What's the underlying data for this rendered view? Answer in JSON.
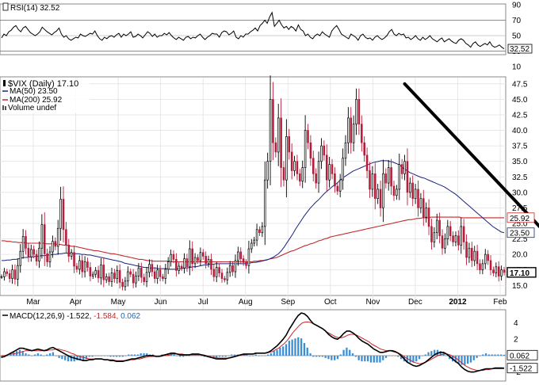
{
  "chart_data": [
    {
      "type": "line",
      "panel": "rsi",
      "title": "RSI(14) 32.52",
      "series": [
        {
          "name": "RSI(14)",
          "color": "#000000"
        }
      ],
      "y_ticks": [
        "90",
        "70",
        "50",
        "30",
        "10"
      ],
      "reference_lines": [
        70,
        50,
        30
      ],
      "current_value_label": "32.52",
      "ylim": [
        10,
        90
      ],
      "values": [
        47,
        52,
        50,
        55,
        57,
        61,
        63,
        58,
        55,
        60,
        62,
        58,
        54,
        52,
        50,
        52,
        55,
        61,
        58,
        55,
        53,
        51,
        54,
        56,
        60,
        52,
        48,
        50,
        46,
        44,
        46,
        48,
        47,
        52,
        50,
        49,
        51,
        53,
        52,
        56,
        50,
        46,
        44,
        48,
        46,
        49,
        50,
        48,
        51,
        53,
        48,
        52,
        50,
        52,
        55,
        48,
        49,
        52,
        50,
        47,
        51,
        55,
        53,
        49,
        52,
        48,
        50,
        50,
        53,
        51,
        54,
        50,
        47,
        45,
        48,
        46,
        44,
        48,
        49,
        46,
        48,
        47,
        50,
        52,
        48,
        45,
        48,
        50,
        53,
        52,
        52,
        48,
        54,
        56,
        55,
        51,
        53,
        56,
        48,
        46,
        50,
        48,
        52,
        52,
        55,
        57,
        60,
        56,
        63,
        66,
        70,
        66,
        74,
        80,
        62,
        66,
        70,
        64,
        60,
        62,
        58,
        62,
        60,
        56,
        64,
        58,
        56,
        50,
        52,
        48,
        46,
        50,
        52,
        50,
        55,
        52,
        50,
        48,
        56,
        60,
        63,
        58,
        52,
        50,
        48,
        46,
        52,
        50,
        48,
        44,
        50,
        52,
        48,
        46,
        47,
        44,
        48,
        50,
        47,
        45,
        47,
        50,
        55,
        58,
        52,
        50,
        53,
        51,
        52,
        47,
        48,
        45,
        47,
        50,
        46,
        44,
        48,
        45,
        47,
        50,
        46,
        44,
        42,
        45,
        47,
        42,
        44,
        46,
        43,
        41,
        40,
        44,
        46,
        44,
        40,
        38,
        35,
        40,
        42,
        38,
        36,
        38,
        40,
        38,
        42,
        37,
        35,
        36,
        38,
        35,
        33
      ]
    },
    {
      "type": "candlestick",
      "panel": "price",
      "title": "$VIX (Daily) 17.10",
      "series": [
        {
          "name": "$VIX (Daily) 17.10",
          "color": "#000000"
        },
        {
          "name": "MA(50) 23.50",
          "color": "#1a237e"
        },
        {
          "name": "MA(200) 25.92",
          "color": "#c62828"
        },
        {
          "name": "Volume undef",
          "color": "#555555"
        }
      ],
      "x_tick_labels": [
        "Mar",
        "Apr",
        "May",
        "Jun",
        "Jul",
        "Aug",
        "Sep",
        "Oct",
        "Nov",
        "Dec",
        "2012",
        "Feb"
      ],
      "y_ticks": [
        "47.5",
        "45.0",
        "42.5",
        "40.0",
        "37.5",
        "35.0",
        "32.5",
        "30.0",
        "27.5",
        "25.0",
        "22.5",
        "20.0",
        "17.5",
        "15.0"
      ],
      "ylim": [
        13.5,
        48.5
      ],
      "price_labels": [
        {
          "text": "25.92",
          "value": 25.92,
          "color": "#c62828"
        },
        {
          "text": "23.50",
          "value": 23.5,
          "color": "#1a237e"
        },
        {
          "text": "17.10",
          "value": 17.1,
          "color": "#000000"
        }
      ],
      "trendline": {
        "from_index": 150,
        "from_value": 47.5,
        "to_index": 210,
        "to_value": 20.0,
        "color": "#000000"
      },
      "close": [
        16.4,
        17.2,
        16.9,
        16.1,
        17.5,
        16.0,
        18.2,
        20.5,
        22.9,
        21.0,
        19.6,
        20.8,
        20.0,
        18.9,
        21.0,
        24.8,
        20.1,
        18.8,
        20.4,
        22.1,
        21.3,
        24.2,
        28.9,
        24.0,
        21.5,
        19.7,
        20.3,
        18.1,
        17.6,
        19.0,
        17.2,
        18.8,
        17.9,
        16.5,
        16.8,
        17.4,
        16.2,
        18.3,
        15.9,
        16.4,
        15.6,
        17.0,
        16.1,
        17.4,
        15.5,
        14.8,
        15.7,
        17.2,
        16.8,
        15.4,
        16.5,
        17.8,
        16.3,
        15.6,
        17.1,
        18.4,
        17.2,
        16.1,
        17.5,
        16.4,
        16.1,
        17.6,
        18.8,
        20.0,
        19.2,
        17.4,
        18.1,
        17.8,
        19.3,
        18.0,
        20.9,
        18.5,
        19.5,
        19.0,
        20.3,
        19.7,
        18.5,
        19.2,
        17.6,
        16.4,
        17.9,
        17.0,
        16.1,
        15.9,
        17.1,
        18.2,
        17.2,
        19.0,
        20.4,
        19.3,
        18.7,
        18.2,
        20.9,
        21.8,
        22.3,
        24.0,
        23.5,
        24.5,
        32.0,
        35.0,
        45.0,
        38.0,
        36.5,
        42.0,
        34.0,
        32.0,
        39.0,
        36.5,
        33.5,
        35.0,
        33.0,
        31.8,
        34.0,
        40.0,
        38.0,
        35.5,
        33.0,
        31.5,
        35.0,
        37.5,
        36.0,
        32.0,
        34.5,
        33.0,
        31.0,
        30.2,
        32.0,
        35.5,
        38.0,
        42.0,
        38.0,
        41.0,
        45.0,
        41.0,
        38.0,
        36.0,
        33.5,
        30.5,
        33.0,
        29.0,
        30.5,
        27.5,
        33.0,
        31.5,
        34.0,
        31.0,
        29.5,
        30.5,
        34.5,
        33.0,
        35.0,
        30.0,
        31.5,
        29.0,
        30.5,
        27.5,
        29.0,
        26.0,
        27.5,
        24.5,
        22.0,
        23.5,
        25.5,
        23.0,
        21.0,
        22.5,
        24.5,
        23.0,
        22.0,
        23.0,
        21.5,
        24.5,
        22.0,
        19.5,
        21.0,
        19.0,
        20.5,
        18.5,
        17.5,
        18.5,
        20.0,
        19.0,
        17.5,
        17.0,
        18.0,
        16.5,
        17.5,
        17.1
      ],
      "ma50": [
        19.0,
        19.0,
        19.1,
        19.1,
        19.2,
        19.2,
        19.3,
        19.4,
        19.5,
        19.5,
        19.6,
        19.6,
        19.7,
        19.7,
        19.8,
        19.8,
        19.9,
        19.9,
        20.0,
        20.0,
        20.1,
        20.1,
        20.2,
        20.2,
        20.2,
        20.1,
        20.1,
        20.1,
        20.0,
        20.0,
        19.9,
        19.9,
        19.8,
        19.7,
        19.6,
        19.5,
        19.4,
        19.3,
        19.2,
        19.1,
        19.0,
        18.9,
        18.8,
        18.6,
        18.5,
        18.4,
        18.3,
        18.2,
        18.1,
        18.0,
        17.9,
        17.9,
        17.8,
        17.8,
        17.8,
        17.7,
        17.7,
        17.7,
        17.7,
        17.6,
        17.6,
        17.6,
        17.7,
        17.7,
        17.8,
        17.8,
        17.9,
        18.0,
        18.0,
        18.1,
        18.2,
        18.3,
        18.3,
        18.4,
        18.4,
        18.5,
        18.5,
        18.5,
        18.5,
        18.5,
        18.5,
        18.5,
        18.5,
        18.5,
        18.5,
        18.5,
        18.6,
        18.6,
        18.7,
        18.7,
        18.8,
        18.9,
        19.0,
        19.1,
        19.3,
        19.5,
        19.8,
        20.1,
        20.6,
        21.2,
        21.9,
        22.6,
        23.3,
        24.1,
        24.8,
        25.5,
        26.2,
        26.8,
        27.4,
        27.9,
        28.4,
        28.8,
        29.3,
        29.8,
        30.2,
        30.6,
        31.0,
        31.3,
        31.7,
        32.1,
        32.5,
        32.8,
        33.1,
        33.4,
        33.6,
        33.8,
        34.0,
        34.2,
        34.4,
        34.6,
        34.8,
        34.9,
        35.0,
        35.1,
        35.1,
        35.1,
        35.0,
        34.9,
        34.7,
        34.5,
        34.2,
        33.8,
        33.5,
        33.2,
        33.0,
        32.8,
        32.6,
        32.4,
        32.3,
        32.1,
        31.9,
        31.7,
        31.5,
        31.3,
        31.1,
        30.9,
        30.6,
        30.3,
        30.0,
        29.7,
        29.3,
        28.9,
        28.5,
        28.1,
        27.7,
        27.3,
        26.9,
        26.5,
        26.1,
        25.7,
        25.3,
        24.9,
        24.5,
        24.2,
        23.9,
        23.6,
        23.5
      ],
      "ma200": [
        22.2,
        22.2,
        22.1,
        22.1,
        22.0,
        22.0,
        21.9,
        21.9,
        21.9,
        21.8,
        21.8,
        21.8,
        21.8,
        21.8,
        21.8,
        21.8,
        21.7,
        21.7,
        21.7,
        21.7,
        21.6,
        21.6,
        21.5,
        21.5,
        21.4,
        21.3,
        21.3,
        21.2,
        21.1,
        21.0,
        20.9,
        20.8,
        20.7,
        20.6,
        20.6,
        20.5,
        20.4,
        20.3,
        20.2,
        20.1,
        20.1,
        20.0,
        19.9,
        19.8,
        19.7,
        19.6,
        19.5,
        19.4,
        19.3,
        19.2,
        19.2,
        19.1,
        19.0,
        19.0,
        18.9,
        18.9,
        18.9,
        18.9,
        18.9,
        18.9,
        18.9,
        18.8,
        18.8,
        18.8,
        18.8,
        18.8,
        18.8,
        18.8,
        18.8,
        18.8,
        18.8,
        18.8,
        18.8,
        18.8,
        18.8,
        18.8,
        18.8,
        18.8,
        18.8,
        18.8,
        18.8,
        18.8,
        18.8,
        18.8,
        18.8,
        18.8,
        18.8,
        18.8,
        18.8,
        18.8,
        18.9,
        18.9,
        19.0,
        19.0,
        19.1,
        19.2,
        19.3,
        19.4,
        19.5,
        19.7,
        19.9,
        20.1,
        20.3,
        20.5,
        20.6,
        20.8,
        21.0,
        21.2,
        21.4,
        21.5,
        21.7,
        21.8,
        22.0,
        22.2,
        22.3,
        22.5,
        22.6,
        22.8,
        22.9,
        23.0,
        23.1,
        23.2,
        23.3,
        23.4,
        23.5,
        23.6,
        23.7,
        23.8,
        23.9,
        24.0,
        24.1,
        24.2,
        24.3,
        24.4,
        24.5,
        24.6,
        24.7,
        24.8,
        24.9,
        25.0,
        25.1,
        25.2,
        25.3,
        25.4,
        25.5,
        25.6,
        25.6,
        25.7,
        25.8,
        25.8,
        25.9,
        25.9,
        25.9,
        26.0,
        26.0,
        26.0,
        26.0,
        26.0,
        26.0,
        26.0,
        26.0,
        26.0,
        26.0,
        26.0,
        25.9,
        25.9,
        25.9,
        25.9,
        25.9,
        25.9,
        25.9,
        25.9,
        25.9,
        25.9,
        25.9,
        25.9,
        25.9,
        25.9,
        25.9,
        25.92
      ]
    },
    {
      "type": "line",
      "panel": "macd",
      "title": "MACD(12,26,9) -1.522, -1.584, 0.062",
      "legend_parts": [
        {
          "text": "MACD(12,26,9)",
          "color": "#000000"
        },
        {
          "text": " -1.522,",
          "color": "#000000"
        },
        {
          "text": " -1.584,",
          "color": "#c62828"
        },
        {
          "text": " 0.062",
          "color": "#1565c0"
        }
      ],
      "series": [
        {
          "name": "MACD",
          "color": "#000000"
        },
        {
          "name": "Signal",
          "color": "#c62828"
        },
        {
          "name": "Histogram",
          "color": "#2e86de"
        }
      ],
      "y_ticks": [
        "4",
        "2",
        "0",
        "-2"
      ],
      "ylim": [
        -3,
        5.5
      ],
      "value_labels": [
        {
          "text": "0.062",
          "value": 0.062
        },
        {
          "text": "-1.522",
          "value": -1.522
        }
      ],
      "macd": [
        -0.2,
        -0.1,
        0.1,
        0.3,
        0.5,
        0.7,
        0.9,
        0.9,
        0.8,
        0.7,
        0.6,
        0.7,
        0.8,
        0.7,
        0.6,
        0.7,
        0.9,
        1.0,
        0.8,
        0.6,
        0.4,
        0.2,
        0.0,
        -0.2,
        -0.3,
        -0.4,
        -0.5,
        -0.6,
        -0.6,
        -0.5,
        -0.5,
        -0.4,
        -0.4,
        -0.4,
        -0.5,
        -0.5,
        -0.6,
        -0.6,
        -0.7,
        -0.7,
        -0.7,
        -0.6,
        -0.5,
        -0.4,
        -0.4,
        -0.3,
        -0.2,
        -0.1,
        0.0,
        0.0,
        0.0,
        -0.1,
        -0.1,
        0.0,
        0.1,
        0.2,
        0.3,
        0.3,
        0.2,
        0.1,
        0.1,
        0.1,
        0.1,
        0.2,
        0.2,
        0.2,
        0.1,
        0.0,
        -0.1,
        -0.2,
        -0.3,
        -0.4,
        -0.4,
        -0.4,
        -0.4,
        -0.3,
        -0.2,
        -0.1,
        0.0,
        0.1,
        0.2,
        0.2,
        0.2,
        0.2,
        0.3,
        0.3,
        0.3,
        0.3,
        0.4,
        0.6,
        0.9,
        1.2,
        1.6,
        2.0,
        2.5,
        3.2,
        3.8,
        4.4,
        4.9,
        5.2,
        5.1,
        4.8,
        4.3,
        3.9,
        3.7,
        3.5,
        3.3,
        3.0,
        2.6,
        2.3,
        2.1,
        2.0,
        2.3,
        2.7,
        3.0,
        3.0,
        2.8,
        2.5,
        2.1,
        1.8,
        1.6,
        1.4,
        1.1,
        0.8,
        0.6,
        0.4,
        0.4,
        0.5,
        0.6,
        0.6,
        0.5,
        0.3,
        0.0,
        -0.4,
        -0.8,
        -1.0,
        -1.2,
        -1.3,
        -1.2,
        -1.0,
        -0.8,
        -0.5,
        -0.2,
        0.1,
        0.3,
        0.4,
        0.4,
        0.2,
        -0.1,
        -0.4,
        -0.7,
        -1.0,
        -1.4,
        -1.7,
        -1.9,
        -2.0,
        -2.0,
        -1.9,
        -1.8,
        -1.7,
        -1.6,
        -1.6,
        -1.6,
        -1.5,
        -1.5,
        -1.5,
        -1.522
      ],
      "signal": [
        0.0,
        0.0,
        0.1,
        0.2,
        0.2,
        0.3,
        0.4,
        0.5,
        0.6,
        0.6,
        0.6,
        0.6,
        0.6,
        0.6,
        0.6,
        0.6,
        0.7,
        0.7,
        0.8,
        0.8,
        0.7,
        0.6,
        0.5,
        0.3,
        0.2,
        0.0,
        -0.1,
        -0.2,
        -0.3,
        -0.4,
        -0.4,
        -0.4,
        -0.4,
        -0.4,
        -0.5,
        -0.5,
        -0.5,
        -0.5,
        -0.6,
        -0.6,
        -0.6,
        -0.6,
        -0.6,
        -0.5,
        -0.5,
        -0.4,
        -0.4,
        -0.3,
        -0.2,
        -0.1,
        -0.1,
        -0.1,
        -0.1,
        -0.1,
        0.0,
        0.0,
        0.1,
        0.2,
        0.2,
        0.2,
        0.2,
        0.1,
        0.1,
        0.1,
        0.1,
        0.1,
        0.1,
        0.1,
        0.0,
        -0.1,
        -0.2,
        -0.2,
        -0.3,
        -0.3,
        -0.3,
        -0.3,
        -0.3,
        -0.2,
        -0.1,
        0.0,
        0.1,
        0.1,
        0.2,
        0.2,
        0.2,
        0.3,
        0.3,
        0.3,
        0.3,
        0.4,
        0.5,
        0.7,
        0.9,
        1.2,
        1.5,
        1.9,
        2.4,
        2.9,
        3.3,
        3.7,
        4.0,
        4.1,
        4.1,
        4.0,
        3.8,
        3.6,
        3.4,
        3.2,
        2.9,
        2.7,
        2.5,
        2.3,
        2.2,
        2.2,
        2.3,
        2.5,
        2.6,
        2.6,
        2.5,
        2.3,
        2.1,
        1.9,
        1.7,
        1.4,
        1.2,
        1.0,
        0.8,
        0.7,
        0.6,
        0.6,
        0.5,
        0.4,
        0.3,
        0.1,
        -0.2,
        -0.4,
        -0.6,
        -0.8,
        -0.9,
        -1.0,
        -0.9,
        -0.8,
        -0.6,
        -0.4,
        -0.2,
        0.0,
        0.1,
        0.2,
        0.2,
        0.1,
        -0.1,
        -0.3,
        -0.6,
        -0.9,
        -1.2,
        -1.4,
        -1.6,
        -1.7,
        -1.8,
        -1.8,
        -1.8,
        -1.7,
        -1.7,
        -1.6,
        -1.6,
        -1.6,
        -1.6,
        -1.584
      ]
    }
  ]
}
